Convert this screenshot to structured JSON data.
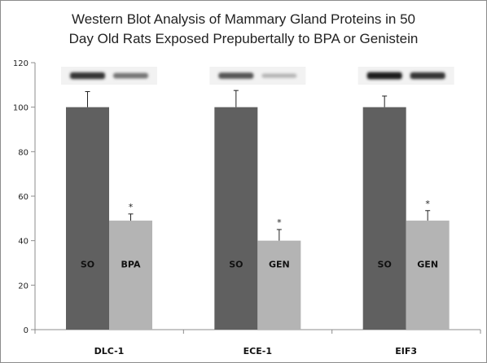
{
  "chart_data": {
    "type": "bar",
    "title": "Western Blot Analysis of Mammary Gland Proteins in 50\nDay Old Rats Exposed Prepubertally to BPA or Genistein",
    "xlabel": "",
    "ylabel": "",
    "ylim": [
      0,
      120
    ],
    "yticks": [
      "0",
      "20",
      "40",
      "60",
      "80",
      "100",
      "120"
    ],
    "grid": false,
    "legend": "none",
    "colors": {
      "control": "#606060",
      "treated": "#b4b4b4",
      "axis": "#8c8c8c",
      "band": "#1e1e1e"
    },
    "groups": [
      {
        "category": "DLC-1",
        "bars": [
          {
            "label": "SO",
            "value": 100,
            "error": 7,
            "significance": ""
          },
          {
            "label": "BPA",
            "value": 49,
            "error": 3,
            "significance": "*"
          }
        ],
        "blot": [
          0.85,
          0.55
        ]
      },
      {
        "category": "ECE-1",
        "bars": [
          {
            "label": "SO",
            "value": 100,
            "error": 7.5,
            "significance": ""
          },
          {
            "label": "GEN",
            "value": 40,
            "error": 5,
            "significance": "*"
          }
        ],
        "blot": [
          0.7,
          0.25
        ]
      },
      {
        "category": "EIF3",
        "bars": [
          {
            "label": "SO",
            "value": 100,
            "error": 5,
            "significance": ""
          },
          {
            "label": "GEN",
            "value": 49,
            "error": 4.5,
            "significance": "*"
          }
        ],
        "blot": [
          0.95,
          0.85
        ]
      }
    ]
  }
}
